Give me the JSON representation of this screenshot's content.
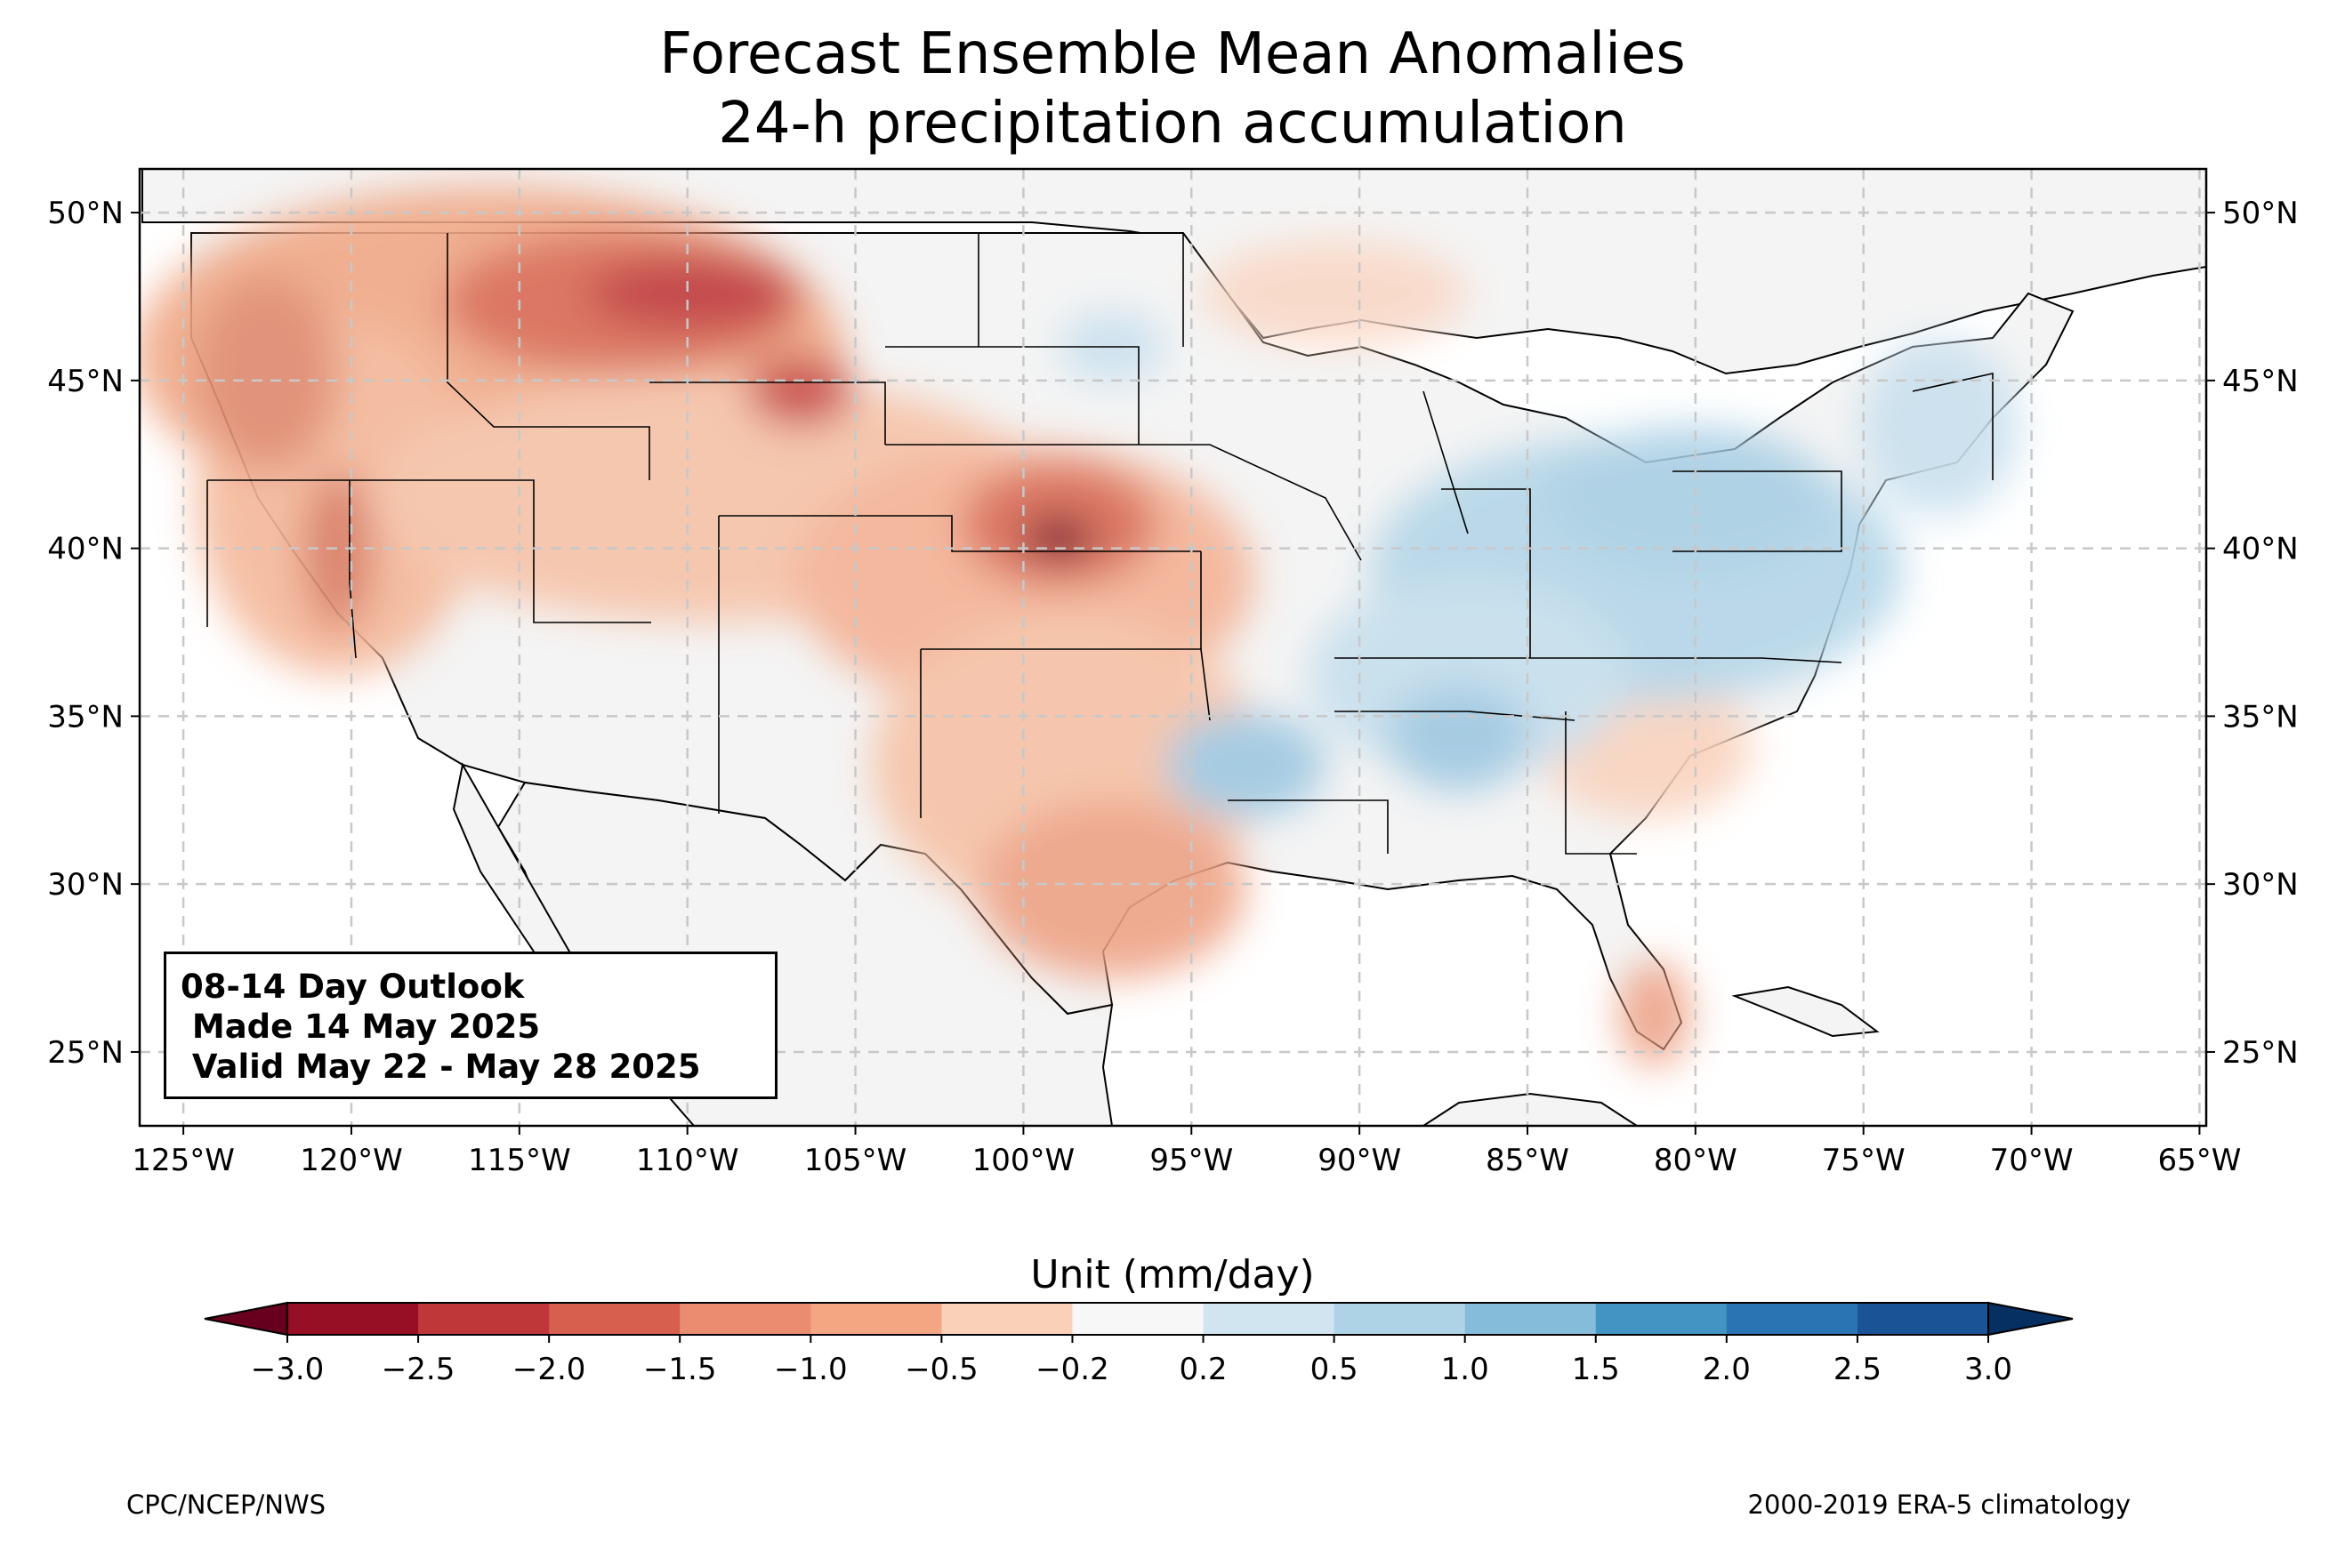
{
  "title": {
    "line1": "Forecast Ensemble Mean Anomalies",
    "line2": "24-h precipitation accumulation"
  },
  "outlook_box": {
    "line1": "08-14 Day Outlook",
    "line2": " Made 14 May 2025",
    "line3": " Valid May 22 - May 28 2025"
  },
  "map": {
    "lon_range": [
      -126.3,
      -64.8
    ],
    "lat_range": [
      22.8,
      51.3
    ],
    "lon_ticks": [
      "125°W",
      "120°W",
      "115°W",
      "110°W",
      "105°W",
      "100°W",
      "95°W",
      "90°W",
      "85°W",
      "80°W",
      "75°W",
      "70°W",
      "65°W"
    ],
    "lat_ticks": [
      "50°N",
      "45°N",
      "40°N",
      "35°N",
      "30°N",
      "25°N"
    ],
    "land_color": "#f4f4f4",
    "grid": "dashed"
  },
  "colorbar": {
    "label": "Unit (mm/day)",
    "tick_labels": [
      "−3.0",
      "−2.5",
      "−2.0",
      "−1.5",
      "−1.0",
      "−0.5",
      "−0.2",
      "0.2",
      "0.5",
      "1.0",
      "1.5",
      "2.0",
      "2.5",
      "3.0"
    ],
    "colors": [
      "#960f24",
      "#c0373a",
      "#d6604d",
      "#e98c6f",
      "#f4a582",
      "#fbd0b9",
      "#f7f7f7",
      "#d1e5f0",
      "#aed3e6",
      "#84bcda",
      "#4393c3",
      "#2b74b4",
      "#1a5496"
    ],
    "under_color": "#67001f",
    "over_color": "#053061"
  },
  "footer": {
    "left": "CPC/NCEP/NWS",
    "right": "2000-2019 ERA-5 climatology"
  }
}
